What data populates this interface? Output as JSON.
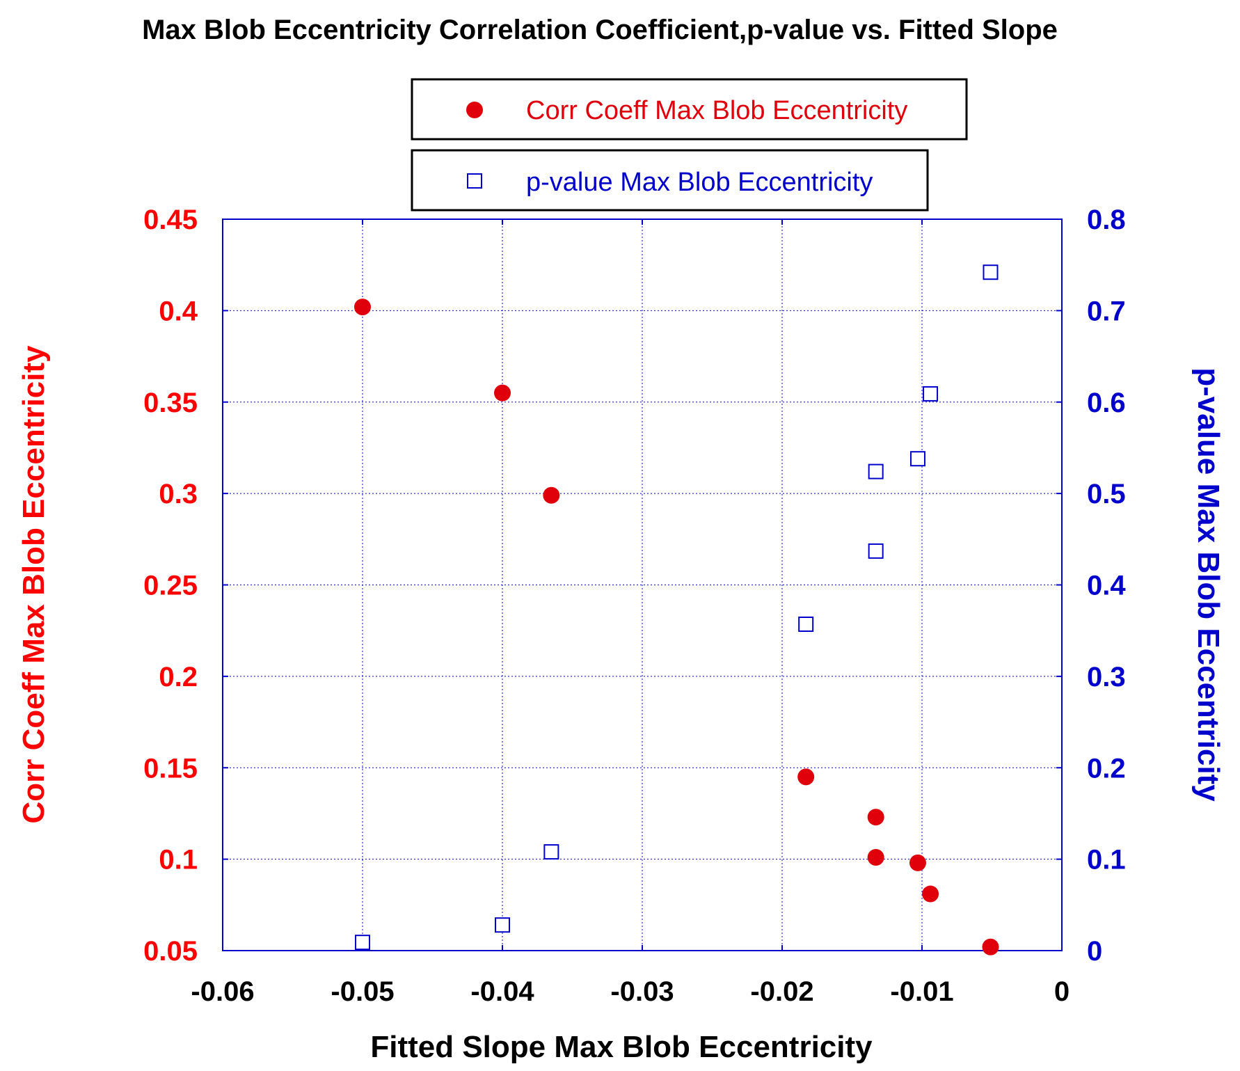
{
  "chart_data": {
    "type": "scatter",
    "title": "Max Blob Eccentricity Correlation Coefficient,p-value vs. Fitted Slope",
    "xlabel": "Fitted Slope Max Blob Eccentricity",
    "ylabel_left": "Corr Coeff Max Blob Eccentricity",
    "ylabel_right": "p-value Max Blob Eccentricity",
    "xlim": [
      -0.06,
      0
    ],
    "ylim_left": [
      0.05,
      0.45
    ],
    "ylim_right": [
      0,
      0.8
    ],
    "x_ticks": [
      "-0.06",
      "-0.05",
      "-0.04",
      "-0.03",
      "-0.02",
      "-0.01",
      "0"
    ],
    "y_left_ticks": [
      "0.05",
      "0.1",
      "0.15",
      "0.2",
      "0.25",
      "0.3",
      "0.35",
      "0.4",
      "0.45"
    ],
    "y_right_ticks": [
      "0",
      "0.1",
      "0.2",
      "0.3",
      "0.4",
      "0.5",
      "0.6",
      "0.7",
      "0.8"
    ],
    "grid": true,
    "legend_position": "top",
    "colors": {
      "corr": "#e0000b",
      "pvalue": "#0000cc",
      "grid": "#0000cc",
      "axis_left": "#ff0000",
      "axis_right": "#0000cc"
    },
    "series": [
      {
        "name": "Corr Coeff Max Blob Eccentricity",
        "axis": "left",
        "marker": "filled-circle",
        "points": [
          {
            "x": -0.05,
            "y": 0.402
          },
          {
            "x": -0.04,
            "y": 0.355
          },
          {
            "x": -0.0365,
            "y": 0.299
          },
          {
            "x": -0.0183,
            "y": 0.145
          },
          {
            "x": -0.0133,
            "y": 0.123
          },
          {
            "x": -0.0133,
            "y": 0.101
          },
          {
            "x": -0.0103,
            "y": 0.098
          },
          {
            "x": -0.0094,
            "y": 0.081
          },
          {
            "x": -0.0051,
            "y": 0.052
          }
        ]
      },
      {
        "name": "p-value Max Blob Eccentricity",
        "axis": "right",
        "marker": "open-square",
        "points": [
          {
            "x": -0.05,
            "y": 0.009
          },
          {
            "x": -0.04,
            "y": 0.028
          },
          {
            "x": -0.0365,
            "y": 0.108
          },
          {
            "x": -0.0183,
            "y": 0.357
          },
          {
            "x": -0.0133,
            "y": 0.437
          },
          {
            "x": -0.0133,
            "y": 0.524
          },
          {
            "x": -0.0103,
            "y": 0.538
          },
          {
            "x": -0.0094,
            "y": 0.609
          },
          {
            "x": -0.0051,
            "y": 0.742
          }
        ]
      }
    ]
  }
}
